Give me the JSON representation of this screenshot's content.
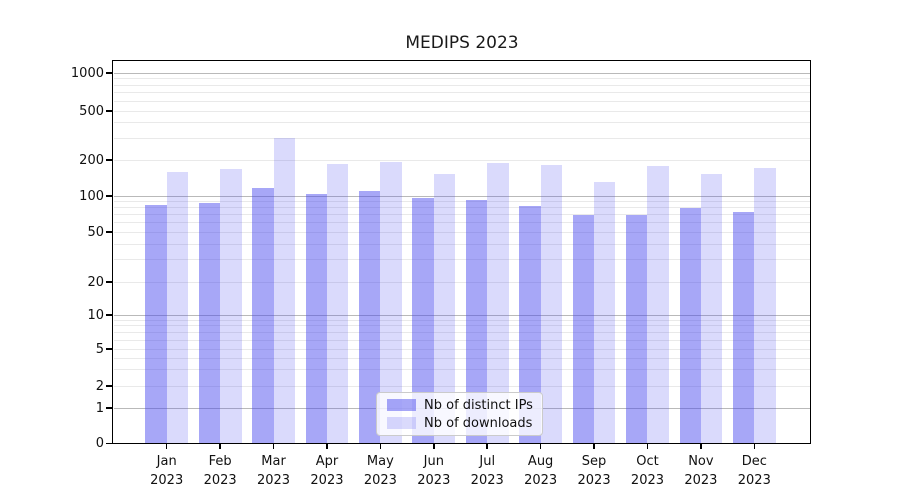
{
  "title": "MEDIPS 2023",
  "chart_data": {
    "type": "bar",
    "title": "MEDIPS 2023",
    "categories": [
      "Jan 2023",
      "Feb 2023",
      "Mar 2023",
      "Apr 2023",
      "May 2023",
      "Jun 2023",
      "Jul 2023",
      "Aug 2023",
      "Sep 2023",
      "Oct 2023",
      "Nov 2023",
      "Dec 2023"
    ],
    "series": [
      {
        "name": "Nb of distinct IPs",
        "color": "rgba(68,68,238,0.47)",
        "values": [
          84,
          87,
          117,
          104,
          111,
          97,
          93,
          82,
          69,
          70,
          79,
          74
        ]
      },
      {
        "name": "Nb of downloads",
        "color": "rgba(68,68,238,0.20)",
        "values": [
          159,
          168,
          300,
          186,
          194,
          152,
          188,
          181,
          131,
          178,
          153,
          171
        ]
      }
    ],
    "xlabel": "",
    "ylabel": "",
    "yscale": "symlog",
    "yticks": [
      0,
      1,
      2,
      5,
      10,
      20,
      50,
      100,
      200,
      500,
      1000
    ],
    "ylim": [
      0,
      1250
    ],
    "grid": true,
    "legend_position": "lower center",
    "colors": {
      "background": "#ffffff",
      "major_grid": "#b9b9b9",
      "minor_grid": "#e9e9e9",
      "spine": "#000000"
    }
  }
}
